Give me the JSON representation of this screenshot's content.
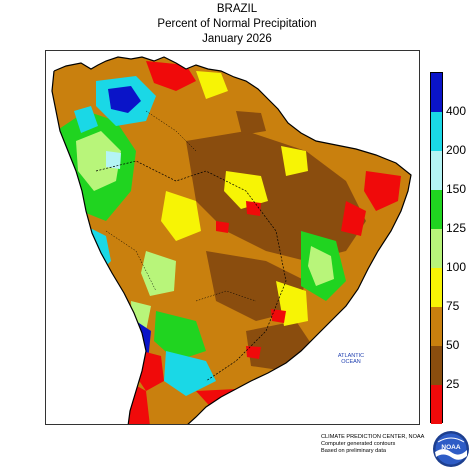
{
  "header": {
    "region": "BRAZIL",
    "product": "Percent of Normal Precipitation",
    "period": "January 2026"
  },
  "map": {
    "ocean_label_line1": "ATLANTIC",
    "ocean_label_line2": "OCEAN"
  },
  "legend": {
    "bins": [
      {
        "color": "#f00a0a"
      },
      {
        "color": "#8a4d0e"
      },
      {
        "color": "#c9800e"
      },
      {
        "color": "#f7f405"
      },
      {
        "color": "#b8f57a"
      },
      {
        "color": "#20d420"
      },
      {
        "color": "#b4f4f4"
      },
      {
        "color": "#1ad8e6"
      },
      {
        "color": "#0a14c8"
      }
    ],
    "labels": [
      "25",
      "50",
      "75",
      "100",
      "125",
      "150",
      "200",
      "400"
    ]
  },
  "palette": {
    "ocean": "#ffffff",
    "outline": "#000000"
  },
  "credit": {
    "line1": "CLIMATE PREDICTION CENTER, NOAA",
    "line2": "Computer generated contours",
    "line3": "Based on preliminary data"
  },
  "logo": {
    "icon": "noaa-logo-icon",
    "text": "NOAA"
  }
}
